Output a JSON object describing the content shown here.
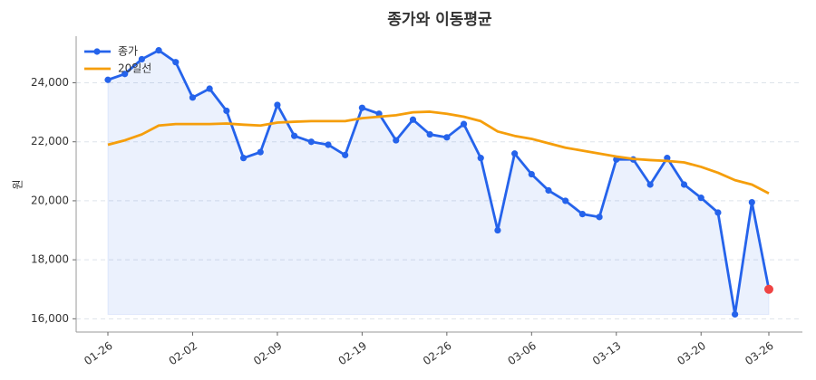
{
  "chart_data": {
    "type": "line",
    "title": "종가와 이동평균",
    "y_label": "원",
    "categories": [
      "01-26",
      null,
      null,
      null,
      null,
      "02-02",
      null,
      null,
      null,
      null,
      "02-09",
      null,
      null,
      null,
      null,
      "02-19",
      null,
      null,
      null,
      null,
      "02-26",
      null,
      null,
      null,
      null,
      "03-06",
      null,
      null,
      null,
      null,
      "03-13",
      null,
      null,
      null,
      null,
      "03-20",
      null,
      null,
      null,
      "03-26"
    ],
    "series": [
      {
        "name": "종가",
        "color": "#2563eb",
        "markers": true,
        "fill": true,
        "values": [
          24100,
          24300,
          24800,
          25100,
          24700,
          23500,
          23800,
          23050,
          21450,
          21650,
          23250,
          22200,
          22000,
          21900,
          21550,
          23150,
          22950,
          22050,
          22750,
          22250,
          22150,
          22600,
          21450,
          19000,
          21600,
          20900,
          20350,
          20000,
          19550,
          19450,
          21400,
          21400,
          20550,
          21450,
          20550,
          20100,
          19600,
          16150,
          19950,
          17000
        ]
      },
      {
        "name": "20일선",
        "color": "#f59e0b",
        "markers": false,
        "fill": false,
        "values": [
          21900,
          22050,
          22250,
          22550,
          22600,
          22600,
          22600,
          22620,
          22580,
          22550,
          22650,
          22680,
          22700,
          22700,
          22700,
          22800,
          22850,
          22900,
          23000,
          23020,
          22950,
          22850,
          22700,
          22350,
          22200,
          22100,
          21950,
          21800,
          21700,
          21600,
          21500,
          21420,
          21380,
          21350,
          21300,
          21150,
          20950,
          20700,
          20550,
          20250
        ]
      }
    ],
    "highlight_last_color": "#ef4444",
    "ylim": [
      15550,
      25580
    ],
    "yticks": [
      {
        "value": 16000,
        "label": "16,000"
      },
      {
        "value": 18000,
        "label": "18,000"
      },
      {
        "value": 20000,
        "label": "20,000"
      },
      {
        "value": 22000,
        "label": "22,000"
      },
      {
        "value": 24000,
        "label": "24,000"
      }
    ],
    "grid": true,
    "legend": "upper left"
  }
}
